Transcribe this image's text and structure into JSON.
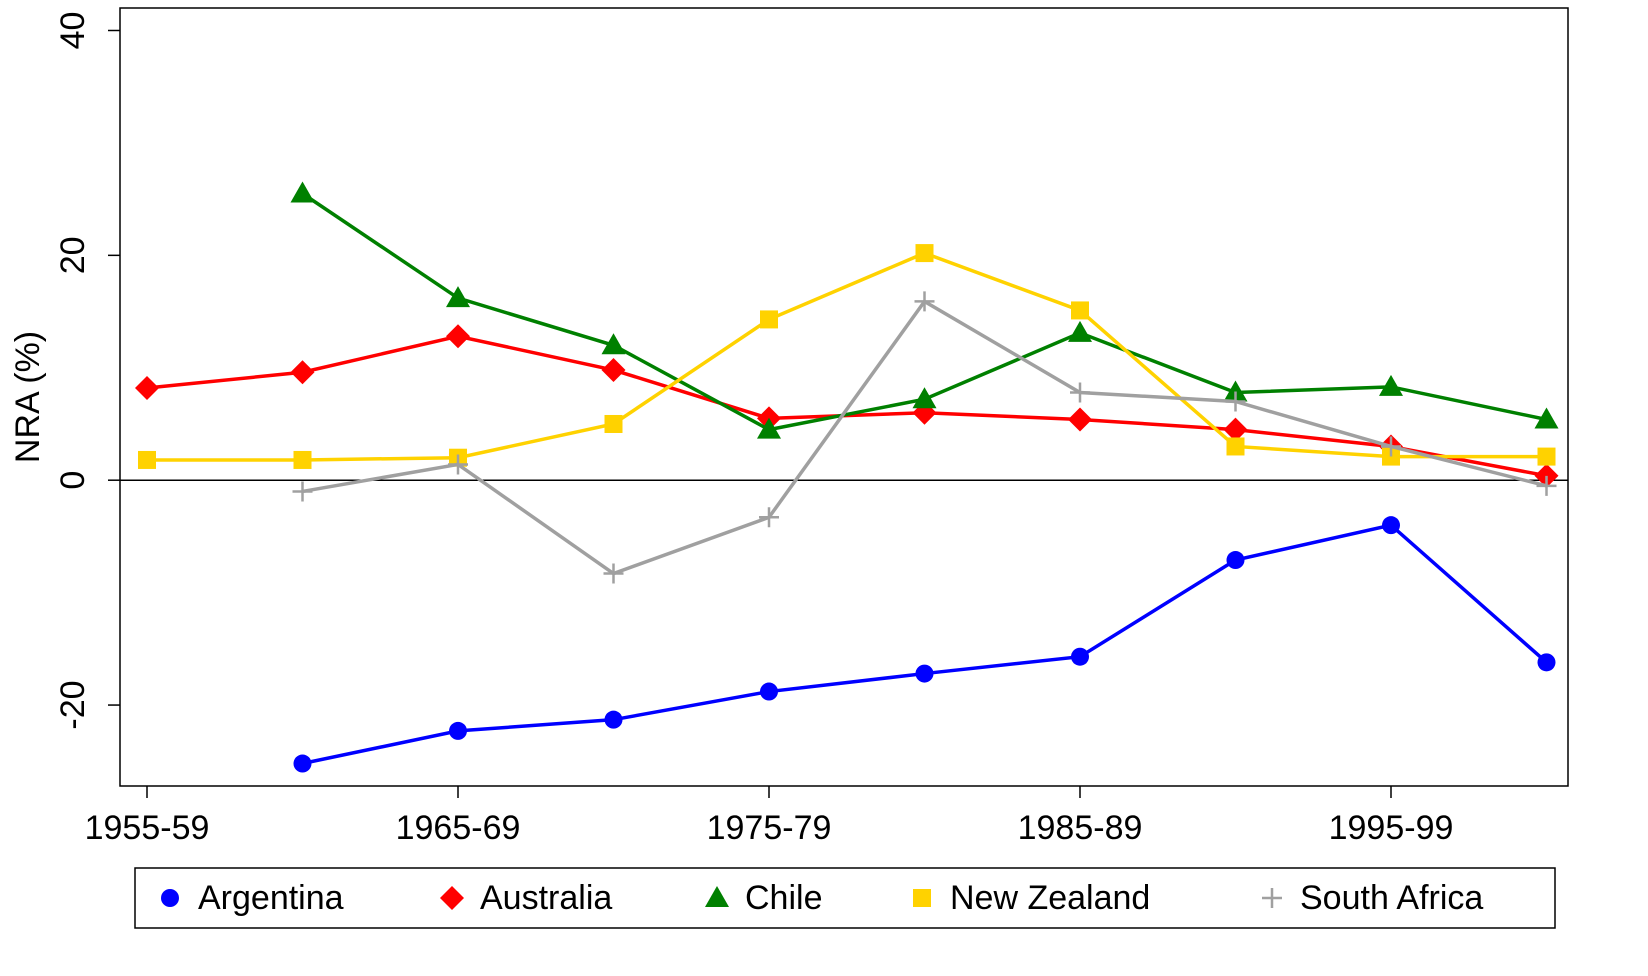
{
  "chart_data": {
    "type": "line",
    "y_label": "NRA (%)",
    "categories": [
      "1955-59",
      null,
      "1965-69",
      null,
      "1975-79",
      null,
      "1985-89",
      null,
      "1995-99",
      null
    ],
    "series": [
      {
        "name": "Argentina",
        "color": "#0000ff",
        "marker": "circle",
        "values": [
          null,
          -25.2,
          -22.3,
          -21.3,
          -18.8,
          -17.2,
          -15.7,
          -7.1,
          -4.0,
          -16.2
        ]
      },
      {
        "name": "Australia",
        "color": "#ff0000",
        "marker": "diamond",
        "values": [
          8.2,
          9.6,
          12.8,
          9.8,
          5.5,
          6.0,
          5.4,
          4.5,
          3.0,
          0.4
        ]
      },
      {
        "name": "Chile",
        "color": "#008000",
        "marker": "triangle",
        "values": [
          null,
          25.5,
          16.2,
          12.0,
          4.5,
          7.2,
          13.1,
          7.8,
          8.3,
          5.4
        ]
      },
      {
        "name": "New Zealand",
        "color": "#ffd200",
        "marker": "square",
        "values": [
          1.8,
          1.8,
          2.0,
          5.0,
          14.3,
          20.2,
          15.1,
          3.0,
          2.1,
          2.1
        ]
      },
      {
        "name": "South Africa",
        "color": "#a0a0a0",
        "marker": "plus",
        "values": [
          null,
          -1.0,
          1.4,
          -8.3,
          -3.3,
          15.9,
          7.8,
          7.0,
          3.0,
          -0.5
        ]
      }
    ],
    "ylim": [
      -27.2,
      42
    ],
    "yticks": [
      -20,
      0,
      20,
      40
    ],
    "yline": 0,
    "legend": "bottom"
  }
}
